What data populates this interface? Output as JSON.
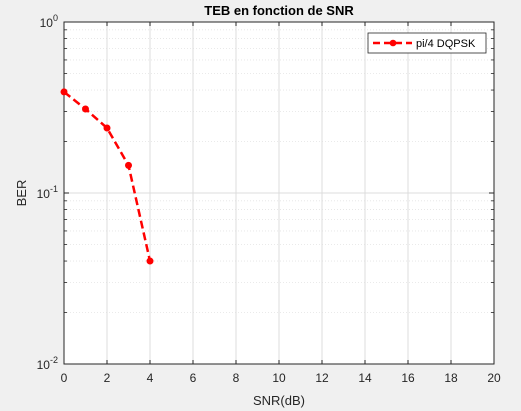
{
  "chart_data": {
    "type": "line",
    "title": "TEB en fonction de SNR",
    "xlabel": "SNR(dB)",
    "ylabel": "BER",
    "xlim": [
      0,
      20
    ],
    "ylim": [
      0.01,
      1
    ],
    "yscale": "log",
    "grid": true,
    "legend_position": "top-right",
    "x_ticks": [
      "0",
      "2",
      "4",
      "6",
      "8",
      "10",
      "12",
      "14",
      "16",
      "18",
      "20"
    ],
    "x_tick_values": [
      0,
      2,
      4,
      6,
      8,
      10,
      12,
      14,
      16,
      18,
      20
    ],
    "y_ticks": [
      {
        "value": 1,
        "base": "10",
        "exp": "0"
      },
      {
        "value": 0.1,
        "base": "10",
        "exp": "-1"
      },
      {
        "value": 0.01,
        "base": "10",
        "exp": "-2"
      }
    ],
    "series": [
      {
        "name": "pi/4 DQPSK",
        "color": "#ff0000",
        "line_style": "dashed",
        "marker": "circle",
        "x": [
          0,
          1,
          2,
          3,
          4
        ],
        "y": [
          0.39,
          0.31,
          0.24,
          0.145,
          0.04
        ]
      }
    ]
  },
  "colors": {
    "figure_bg": "#f0f0f0",
    "axes_bg": "#ffffff",
    "grid": "#dcdcdc",
    "axis": "#262626"
  }
}
